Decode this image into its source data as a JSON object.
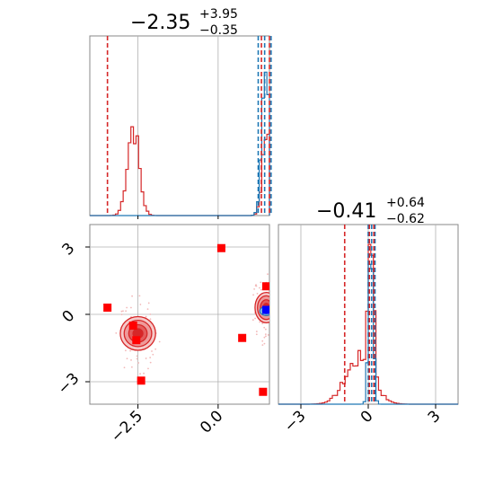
{
  "chart_data": {
    "type": "corner",
    "parameters": [
      {
        "range": [
          -4.0,
          1.6
        ],
        "ticks": [
          -2.5,
          0.0
        ],
        "tick_labels": [
          "−2.5",
          "0.0"
        ]
      },
      {
        "range": [
          -4.0,
          4.0
        ],
        "ticks": [
          -3,
          0,
          3
        ],
        "tick_labels": [
          "−3",
          "0",
          "3"
        ]
      }
    ],
    "titles": [
      {
        "value": "−2.35",
        "plus": "+3.95",
        "minus": "−0.35"
      },
      {
        "value": "−0.41",
        "plus": "+0.64",
        "minus": "−0.62"
      }
    ],
    "colors": {
      "red": "#d62728",
      "blue": "#1f77b4",
      "square_red": "#ff0000",
      "square_blue": "#0000ff",
      "grid": "#b0b0b0"
    },
    "hist_x": {
      "red_quantiles": [
        -3.45,
        1.35,
        1.6
      ],
      "blue_quantiles": [
        1.25,
        1.45,
        1.65
      ],
      "red_modes": [
        {
          "center": -2.65,
          "sigma": 0.18,
          "peak": 0.5
        },
        {
          "center": 1.5,
          "sigma": 0.12,
          "peak": 0.48
        }
      ],
      "blue_modes": [
        {
          "center": 1.5,
          "sigma": 0.12,
          "peak": 0.93
        }
      ]
    },
    "hist_y": {
      "red_quantiles": [
        -1.05,
        0.05,
        0.25
      ],
      "blue_quantiles": [
        -0.0,
        0.15,
        0.3
      ],
      "red_modes": [
        {
          "center": -0.4,
          "sigma": 0.6,
          "peak": 0.25
        },
        {
          "center": 0.12,
          "sigma": 0.12,
          "peak": 0.88
        }
      ],
      "blue_modes": [
        {
          "center": 0.12,
          "sigma": 0.1,
          "peak": 0.96
        }
      ]
    },
    "scatter_red_squares": [
      [
        -3.45,
        0.3
      ],
      [
        -2.65,
        -0.5
      ],
      [
        -2.55,
        -1.15
      ],
      [
        -2.4,
        -2.95
      ],
      [
        0.1,
        2.95
      ],
      [
        0.75,
        -1.05
      ],
      [
        1.4,
        -3.45
      ],
      [
        1.5,
        1.25
      ]
    ],
    "scatter_blue_squares": [
      [
        1.5,
        0.2
      ]
    ],
    "contours_red": [
      {
        "center": [
          -2.5,
          -0.85
        ],
        "rx": 0.55,
        "ry": 1.5
      },
      {
        "center": [
          1.5,
          0.3
        ],
        "rx": 0.35,
        "ry": 1.35
      }
    ],
    "contours_blue": [
      {
        "center": [
          1.5,
          0.15
        ],
        "rx": 0.2,
        "ry": 0.4
      }
    ]
  }
}
